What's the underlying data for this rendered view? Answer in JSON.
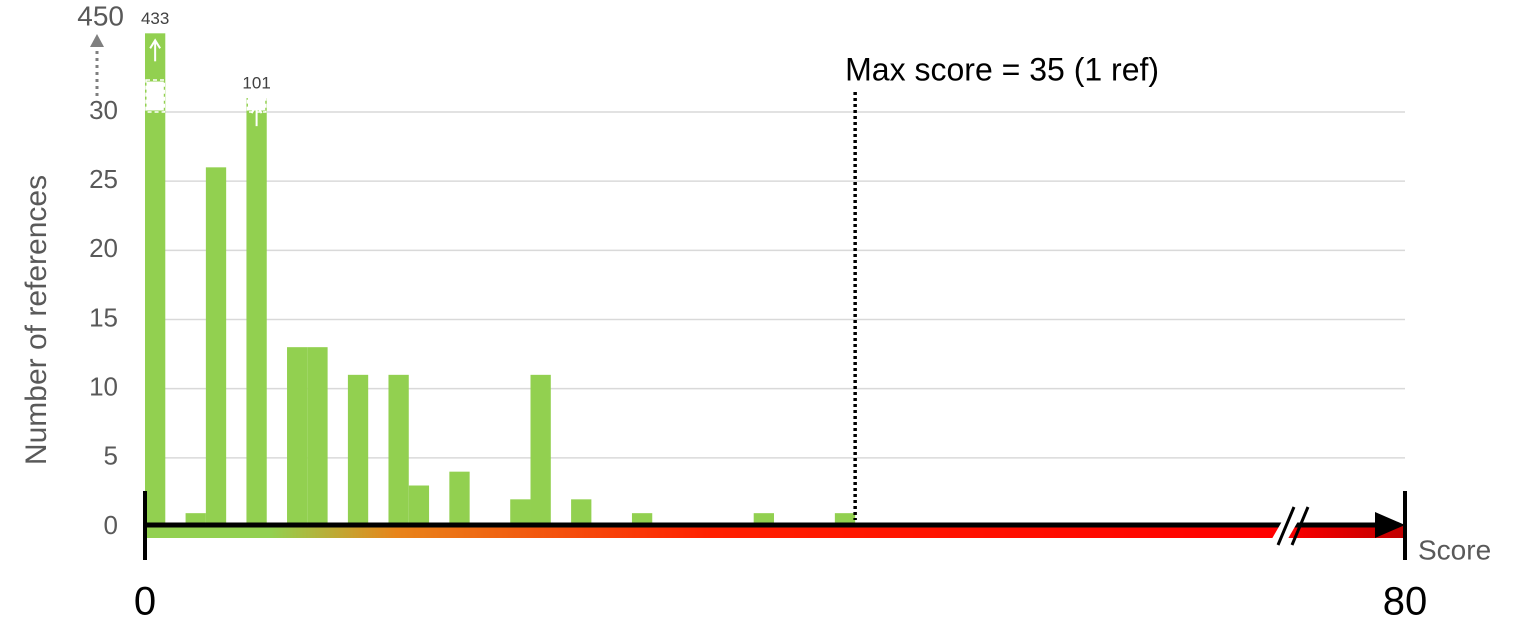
{
  "chart_data": {
    "type": "histogram",
    "ylabel": "Number of references",
    "xlabel": "Score",
    "bins": [
      0,
      1,
      2,
      3,
      4,
      5,
      6,
      7,
      8,
      9,
      10,
      11,
      12,
      13,
      14,
      15,
      16,
      17,
      18,
      19,
      20,
      21,
      22,
      23,
      24,
      25,
      26,
      27,
      28,
      29,
      30,
      31,
      32,
      33,
      34,
      35
    ],
    "values": [
      433,
      0,
      1,
      26,
      0,
      101,
      0,
      13,
      13,
      0,
      11,
      0,
      11,
      3,
      0,
      4,
      0,
      0,
      2,
      11,
      0,
      2,
      0,
      0,
      1,
      0,
      0,
      0,
      0,
      0,
      1,
      0,
      0,
      0,
      1
    ],
    "color": "#92d050",
    "xlim": [
      0,
      80
    ],
    "xticks": [
      0,
      80
    ],
    "ylim": [
      0,
      450
    ],
    "yticks": [
      0,
      5,
      10,
      15,
      20,
      25,
      30,
      450
    ],
    "grid": true,
    "annotations": [
      {
        "x": 35,
        "label": "Max score = 35 (1 ref)"
      }
    ]
  }
}
